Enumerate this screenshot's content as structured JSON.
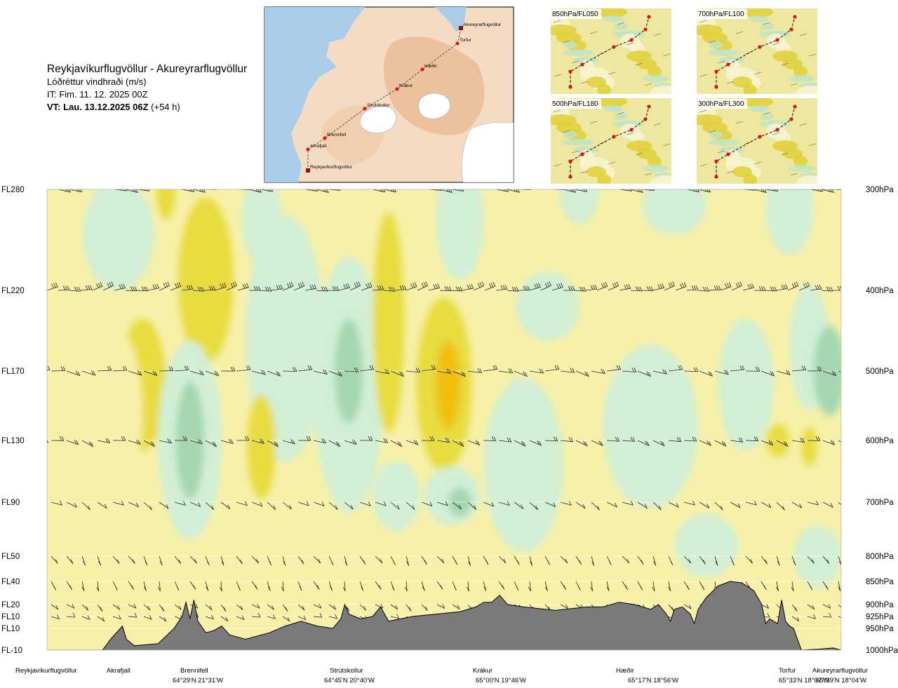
{
  "header": {
    "route": "Reykjavíkurflugvöllur - Akureyrarflugvöllur",
    "parameter": "Lóðréttur vindhraði (m/s)",
    "issue_time": "IT: Fim. 11. 12. 2025 00Z",
    "valid_time_bold": "VT: Lau. 13.12.2025 06Z",
    "valid_time_offset": "(+54 h)"
  },
  "overview_map": {
    "labels": [
      "Akureyrarflugvöllur",
      "Torfur",
      "Hæðir",
      "Krákur",
      "Strútskollur",
      "Brennifell",
      "Akrafjall",
      "Reykjavíkurflugvöllur"
    ]
  },
  "panels": [
    {
      "label": "850hPa/FL050"
    },
    {
      "label": "700hPa/FL100"
    },
    {
      "label": "500hPa/FL180"
    },
    {
      "label": "300hPa/FL300"
    }
  ],
  "chart_data": {
    "type": "heatmap",
    "title": "Lóðréttur vindhraði (m/s)",
    "x_axis": "route waypoints",
    "levels": [
      {
        "fl": "FL280",
        "hpa": "300hPa",
        "pressure": 300
      },
      {
        "fl": "FL220",
        "hpa": "400hPa",
        "pressure": 400
      },
      {
        "fl": "FL170",
        "hpa": "500hPa",
        "pressure": 500
      },
      {
        "fl": "FL130",
        "hpa": "600hPa",
        "pressure": 600
      },
      {
        "fl": "FL90",
        "hpa": "700hPa",
        "pressure": 700
      },
      {
        "fl": "FL50",
        "hpa": "800hPa",
        "pressure": 800
      },
      {
        "fl": "FL40",
        "hpa": "850hPa",
        "pressure": 850
      },
      {
        "fl": "FL20",
        "hpa": "900hPa",
        "pressure": 900
      },
      {
        "fl": "FL10",
        "hpa": "925hPa",
        "pressure": 925
      },
      {
        "fl": "FL10",
        "hpa": "950hPa",
        "pressure": 950
      },
      {
        "fl": "FL-10",
        "hpa": "1000hPa",
        "pressure": 1000
      }
    ],
    "waypoints": [
      {
        "name": "Reykjavíkurflugvöllur",
        "coord": "",
        "pos": 0.0
      },
      {
        "name": "Akrafjall",
        "coord": "",
        "pos": 0.09
      },
      {
        "name": "Brennifell",
        "coord": "64°29'N 21°31'W",
        "pos": 0.187
      },
      {
        "name": "Strútskollur",
        "coord": "64°45'N 20°40'W",
        "pos": 0.385
      },
      {
        "name": "Krákur",
        "coord": "65°00'N 19°46'W",
        "pos": 0.57
      },
      {
        "name": "Hæðir",
        "coord": "65°17'N 18°56'W",
        "pos": 0.76
      },
      {
        "name": "Torfur",
        "coord": "65°33'N 18°07'W",
        "pos": 0.94
      },
      {
        "name": "Akureyrarflugvöllur",
        "coord": "65°39'N 18°04'W",
        "pos": 1.0
      }
    ],
    "colors": {
      "strong_down": "#f0c010",
      "moderate_down": "#e8dc40",
      "weak_down": "#f7f0a8",
      "near_zero": "#fdfde2",
      "weak_up": "#d2efd6",
      "moderate_up": "#a6d7b0",
      "strong_up": "#5aa870",
      "terrain": "#7a7a7a"
    },
    "contour_blobs": [
      {
        "x": 0.09,
        "p": 345,
        "rx": 0.045,
        "rp": 55,
        "c": "weak_up"
      },
      {
        "x": 0.15,
        "p": 300,
        "rx": 0.012,
        "rp": 30,
        "c": "moderate_down"
      },
      {
        "x": 0.2,
        "p": 390,
        "rx": 0.035,
        "rp": 90,
        "c": "moderate_down"
      },
      {
        "x": 0.12,
        "p": 520,
        "rx": 0.03,
        "rp": 90,
        "c": "moderate_down"
      },
      {
        "x": 0.08,
        "p": 560,
        "rx": 0.04,
        "rp": 130,
        "c": "weak_down"
      },
      {
        "x": 0.18,
        "p": 600,
        "rx": 0.04,
        "rp": 150,
        "c": "weak_up"
      },
      {
        "x": 0.18,
        "p": 600,
        "rx": 0.018,
        "rp": 90,
        "c": "moderate_up"
      },
      {
        "x": 0.27,
        "p": 330,
        "rx": 0.025,
        "rp": 45,
        "c": "weak_up"
      },
      {
        "x": 0.3,
        "p": 460,
        "rx": 0.05,
        "rp": 150,
        "c": "weak_up"
      },
      {
        "x": 0.27,
        "p": 610,
        "rx": 0.018,
        "rp": 80,
        "c": "moderate_down"
      },
      {
        "x": 0.38,
        "p": 520,
        "rx": 0.045,
        "rp": 170,
        "c": "weak_up"
      },
      {
        "x": 0.38,
        "p": 500,
        "rx": 0.018,
        "rp": 70,
        "c": "moderate_up"
      },
      {
        "x": 0.43,
        "p": 440,
        "rx": 0.02,
        "rp": 130,
        "c": "moderate_down"
      },
      {
        "x": 0.44,
        "p": 690,
        "rx": 0.03,
        "rp": 60,
        "c": "weak_up"
      },
      {
        "x": 0.5,
        "p": 520,
        "rx": 0.035,
        "rp": 120,
        "c": "moderate_down"
      },
      {
        "x": 0.505,
        "p": 520,
        "rx": 0.016,
        "rp": 60,
        "c": "strong_down"
      },
      {
        "x": 0.52,
        "p": 330,
        "rx": 0.03,
        "rp": 60,
        "c": "weak_up"
      },
      {
        "x": 0.51,
        "p": 690,
        "rx": 0.035,
        "rp": 50,
        "c": "weak_up"
      },
      {
        "x": 0.52,
        "p": 700,
        "rx": 0.015,
        "rp": 25,
        "c": "moderate_up"
      },
      {
        "x": 0.6,
        "p": 640,
        "rx": 0.05,
        "rp": 140,
        "c": "weak_up"
      },
      {
        "x": 0.63,
        "p": 420,
        "rx": 0.04,
        "rp": 40,
        "c": "weak_up"
      },
      {
        "x": 0.67,
        "p": 300,
        "rx": 0.025,
        "rp": 35,
        "c": "weak_up"
      },
      {
        "x": 0.76,
        "p": 580,
        "rx": 0.06,
        "rp": 120,
        "c": "weak_up"
      },
      {
        "x": 0.79,
        "p": 315,
        "rx": 0.04,
        "rp": 30,
        "c": "weak_up"
      },
      {
        "x": 0.83,
        "p": 780,
        "rx": 0.04,
        "rp": 60,
        "c": "weak_up"
      },
      {
        "x": 0.88,
        "p": 520,
        "rx": 0.035,
        "rp": 90,
        "c": "weak_up"
      },
      {
        "x": 0.92,
        "p": 600,
        "rx": 0.015,
        "rp": 25,
        "c": "moderate_down"
      },
      {
        "x": 0.96,
        "p": 470,
        "rx": 0.025,
        "rp": 80,
        "c": "weak_up"
      },
      {
        "x": 0.985,
        "p": 500,
        "rx": 0.02,
        "rp": 60,
        "c": "moderate_up"
      },
      {
        "x": 0.96,
        "p": 610,
        "rx": 0.01,
        "rp": 30,
        "c": "moderate_down"
      },
      {
        "x": 0.935,
        "p": 320,
        "rx": 0.03,
        "rp": 45,
        "c": "weak_up"
      },
      {
        "x": 0.97,
        "p": 800,
        "rx": 0.03,
        "rp": 60,
        "c": "weak_up"
      }
    ],
    "terrain_profile": [
      [
        0.0,
        1000
      ],
      [
        0.07,
        1000
      ],
      [
        0.08,
        975
      ],
      [
        0.095,
        945
      ],
      [
        0.1,
        975
      ],
      [
        0.11,
        990
      ],
      [
        0.14,
        985
      ],
      [
        0.16,
        950
      ],
      [
        0.17,
        925
      ],
      [
        0.175,
        895
      ],
      [
        0.18,
        930
      ],
      [
        0.185,
        890
      ],
      [
        0.19,
        935
      ],
      [
        0.2,
        960
      ],
      [
        0.21,
        955
      ],
      [
        0.22,
        945
      ],
      [
        0.23,
        965
      ],
      [
        0.25,
        975
      ],
      [
        0.28,
        960
      ],
      [
        0.3,
        945
      ],
      [
        0.32,
        935
      ],
      [
        0.34,
        945
      ],
      [
        0.36,
        950
      ],
      [
        0.37,
        930
      ],
      [
        0.375,
        900
      ],
      [
        0.38,
        920
      ],
      [
        0.395,
        930
      ],
      [
        0.41,
        925
      ],
      [
        0.42,
        905
      ],
      [
        0.43,
        935
      ],
      [
        0.46,
        925
      ],
      [
        0.49,
        920
      ],
      [
        0.52,
        915
      ],
      [
        0.54,
        905
      ],
      [
        0.55,
        895
      ],
      [
        0.56,
        895
      ],
      [
        0.57,
        880
      ],
      [
        0.575,
        890
      ],
      [
        0.58,
        900
      ],
      [
        0.6,
        905
      ],
      [
        0.64,
        912
      ],
      [
        0.68,
        905
      ],
      [
        0.7,
        905
      ],
      [
        0.72,
        895
      ],
      [
        0.74,
        900
      ],
      [
        0.76,
        910
      ],
      [
        0.77,
        900
      ],
      [
        0.78,
        920
      ],
      [
        0.785,
        935
      ],
      [
        0.79,
        910
      ],
      [
        0.8,
        905
      ],
      [
        0.81,
        920
      ],
      [
        0.815,
        940
      ],
      [
        0.82,
        910
      ],
      [
        0.83,
        885
      ],
      [
        0.845,
        860
      ],
      [
        0.86,
        850
      ],
      [
        0.875,
        853
      ],
      [
        0.89,
        870
      ],
      [
        0.9,
        900
      ],
      [
        0.905,
        940
      ],
      [
        0.91,
        930
      ],
      [
        0.92,
        940
      ],
      [
        0.925,
        890
      ],
      [
        0.93,
        935
      ],
      [
        0.935,
        945
      ],
      [
        0.94,
        950
      ],
      [
        0.95,
        1000
      ],
      [
        0.97,
        998
      ],
      [
        0.99,
        995
      ],
      [
        1.0,
        1000
      ]
    ]
  }
}
